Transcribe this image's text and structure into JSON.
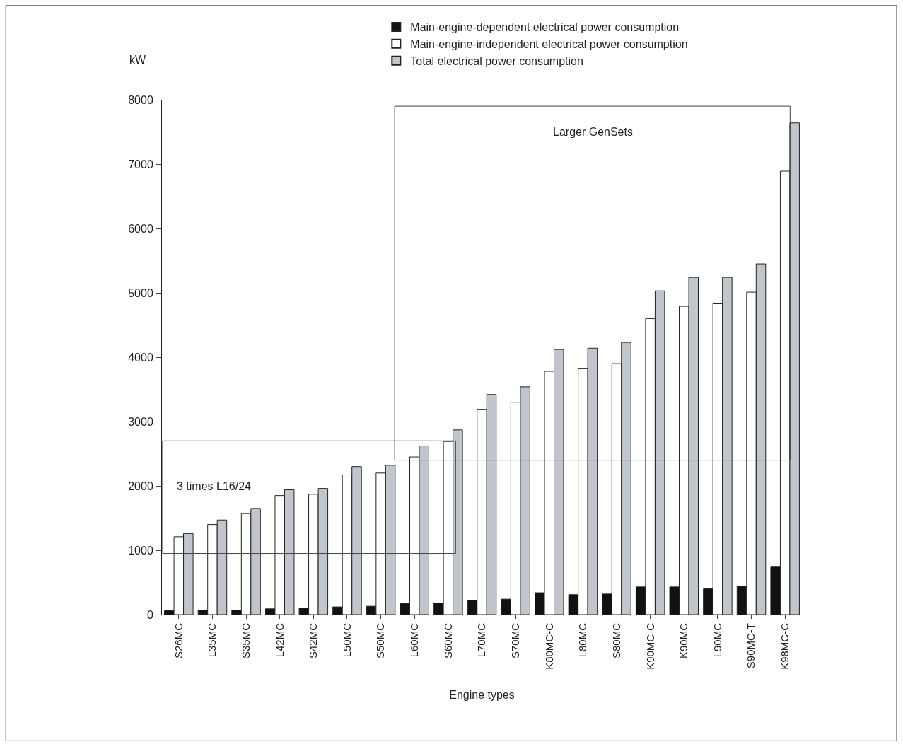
{
  "chart_data": {
    "type": "bar",
    "xlabel": "Engine types",
    "ylabel": "kW",
    "categories": [
      "S26MC",
      "L35MC",
      "S35MC",
      "L42MC",
      "S42MC",
      "L50MC",
      "S50MC",
      "L60MC",
      "S60MC",
      "L70MC",
      "S70MC",
      "K80MC-C",
      "L80MC",
      "S80MC",
      "K90MC-C",
      "K90MC",
      "L90MC",
      "S90MC-T",
      "K98MC-C"
    ],
    "series": [
      {
        "name": "Main-engine-dependent electrical power consumption",
        "color": "#111111",
        "values": [
          60,
          70,
          70,
          90,
          100,
          120,
          130,
          170,
          180,
          220,
          240,
          340,
          310,
          320,
          430,
          430,
          400,
          440,
          750
        ]
      },
      {
        "name": "Main-engine-independent electrical power consumption",
        "color": "#ffffff",
        "values": [
          1210,
          1400,
          1570,
          1850,
          1870,
          2170,
          2200,
          2450,
          2690,
          3190,
          3300,
          3780,
          3820,
          3900,
          4600,
          4790,
          4830,
          5010,
          6890
        ]
      },
      {
        "name": "Total electrical power consumption",
        "color": "#c0c6cc",
        "values": [
          1260,
          1470,
          1650,
          1940,
          1960,
          2300,
          2320,
          2620,
          2870,
          3420,
          3540,
          4120,
          4140,
          4230,
          5030,
          5240,
          5240,
          5450,
          7640
        ]
      }
    ],
    "ylim": [
      0,
      8000
    ],
    "yticks": [
      0,
      1000,
      2000,
      3000,
      4000,
      5000,
      6000,
      7000,
      8000
    ],
    "annotations": [
      "Larger GenSets",
      "3 times L16/24"
    ],
    "legend": "top"
  }
}
